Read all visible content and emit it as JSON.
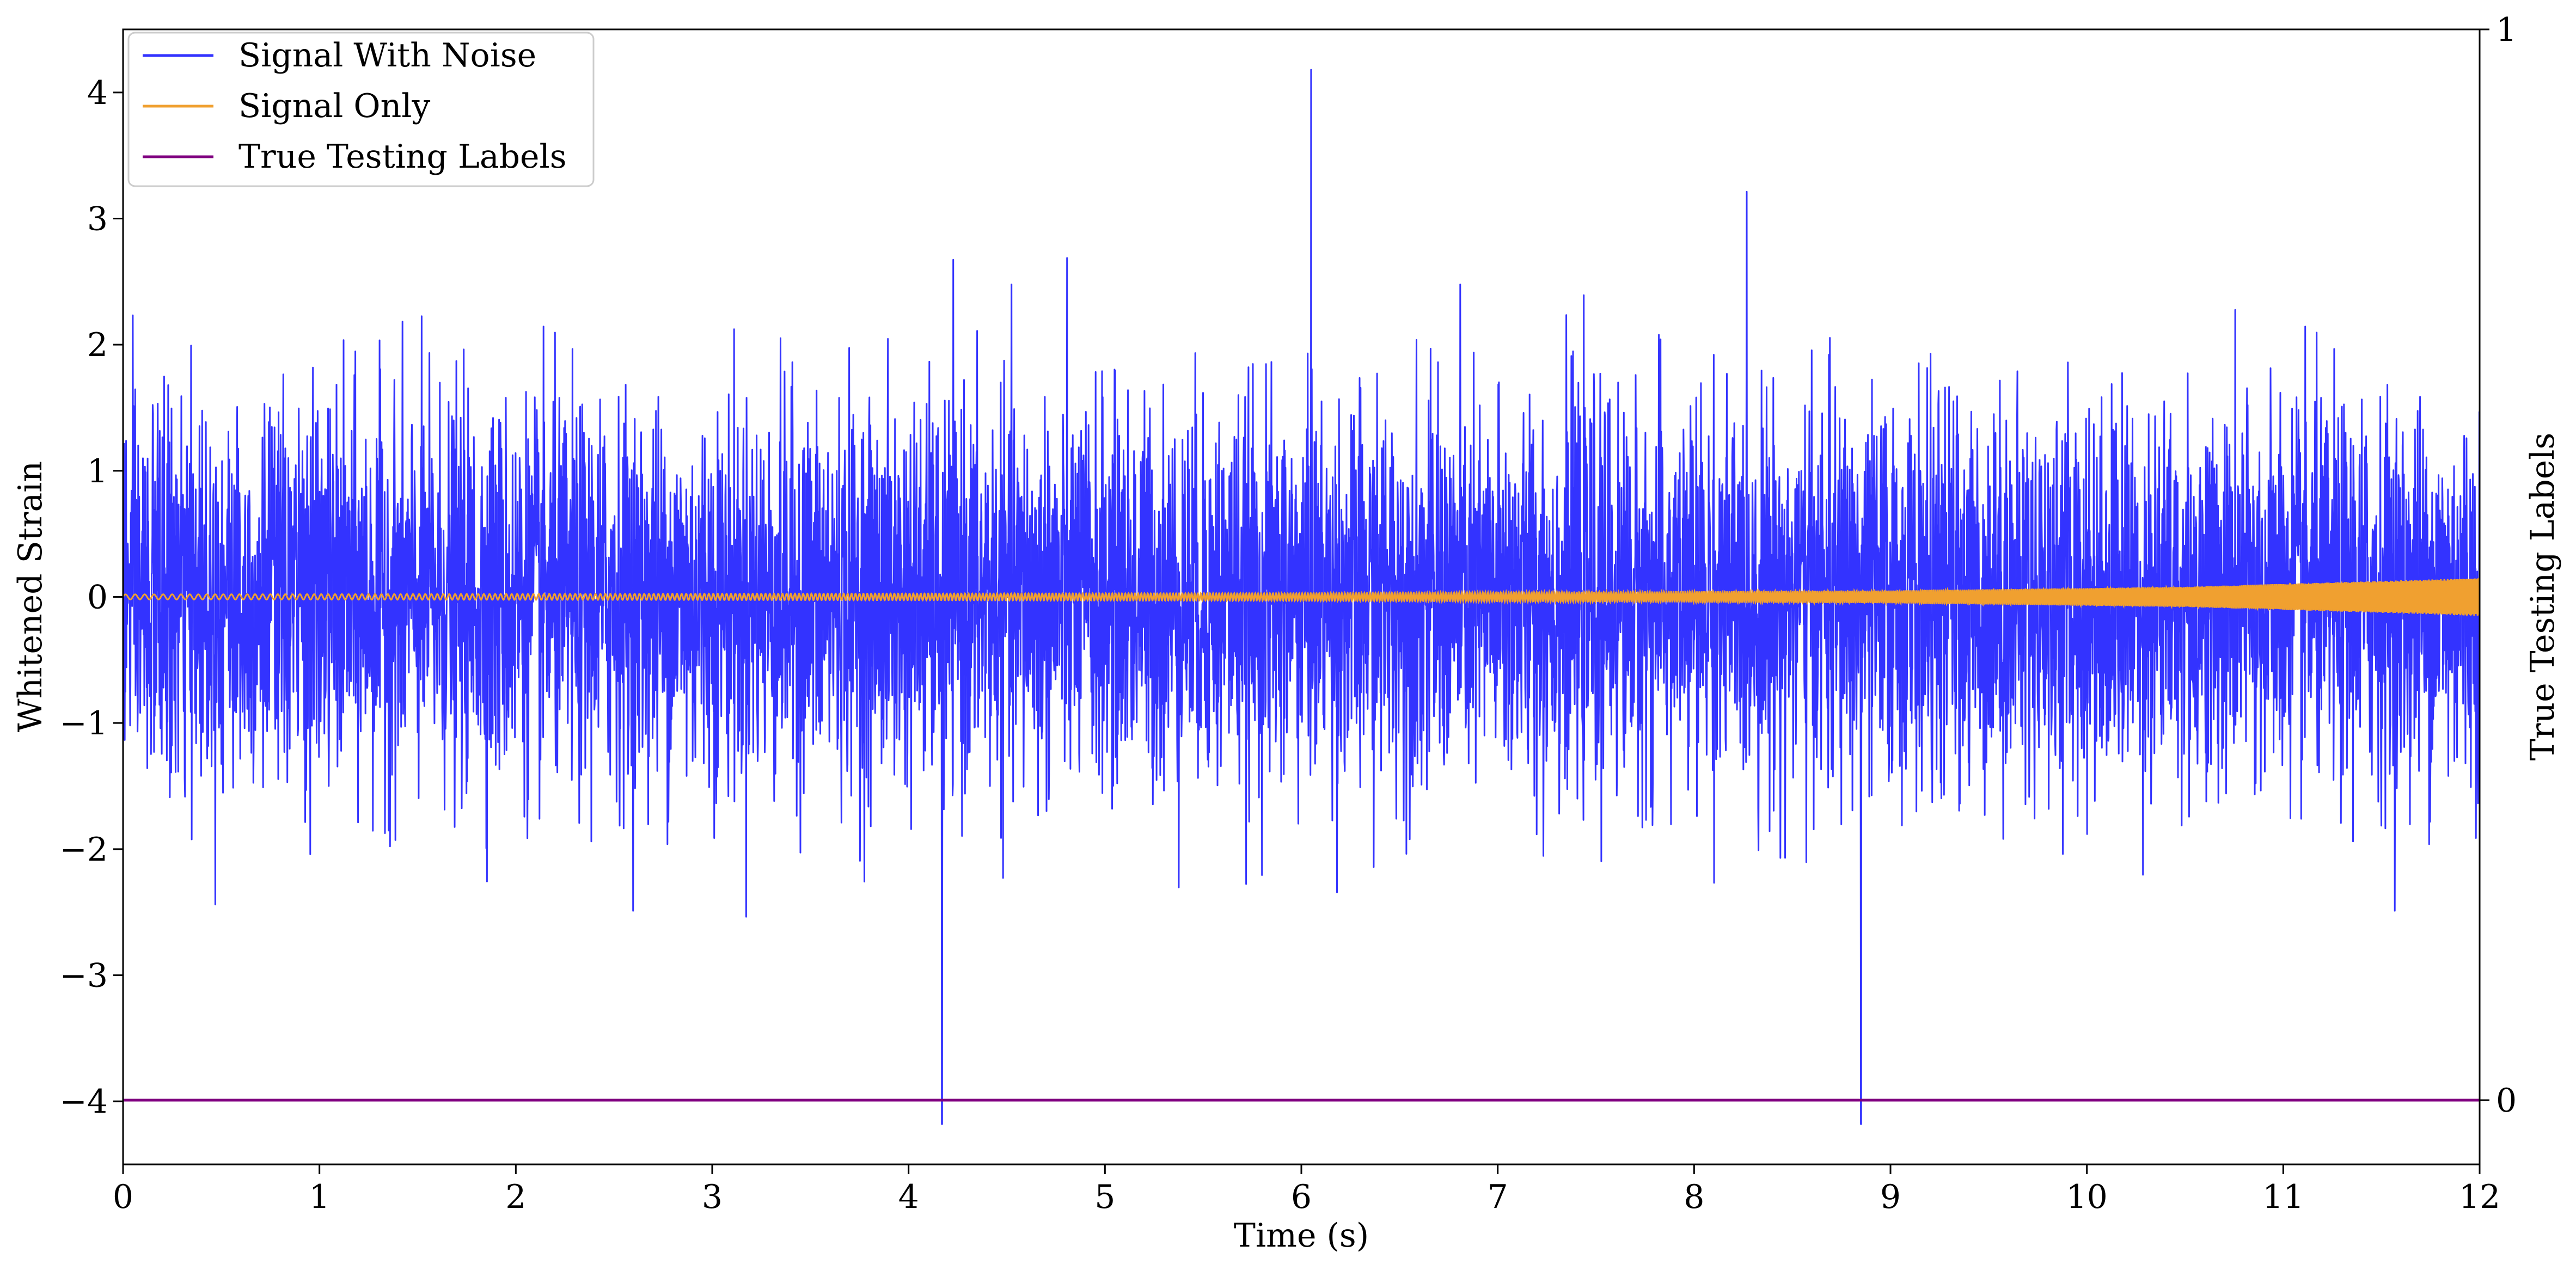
{
  "chart_data": {
    "type": "line",
    "title": "",
    "xlabel": "Time (s)",
    "ylabel": "Whitened Strain",
    "y2label": "True Testing Labels",
    "xlim": [
      0,
      12
    ],
    "ylim": [
      -4.5,
      4.5
    ],
    "y2lim": [
      -0.06,
      1.0
    ],
    "xticks": [
      0,
      1,
      2,
      3,
      4,
      5,
      6,
      7,
      8,
      9,
      10,
      11,
      12
    ],
    "xtick_labels": [
      "0",
      "1",
      "2",
      "3",
      "4",
      "5",
      "6",
      "7",
      "8",
      "9",
      "10",
      "11",
      "12"
    ],
    "yticks": [
      4,
      3,
      2,
      1,
      0,
      -1,
      -2,
      -3,
      -4
    ],
    "ytick_labels": [
      "4",
      "3",
      "2",
      "1",
      "0",
      "−1",
      "−2",
      "−3",
      "−4"
    ],
    "y2ticks": [
      1,
      0
    ],
    "y2tick_labels": [
      "1",
      "0"
    ],
    "grid": false,
    "legend_position": "top-left",
    "series": [
      {
        "name": "Signal With Noise",
        "color": "#3333ff",
        "axis": "left",
        "description_values": {
          "noise_std": 0.75,
          "max_peak": 4.18,
          "max_peak_x": 6.05,
          "min_peak": -4.18,
          "min_peak_x": [
            4.17,
            8.85
          ]
        }
      },
      {
        "name": "Signal Only",
        "color": "#f0a030",
        "axis": "left",
        "envelope": [
          [
            0,
            0.02
          ],
          [
            6,
            0.03
          ],
          [
            9,
            0.05
          ],
          [
            10.5,
            0.08
          ],
          [
            12,
            0.15
          ]
        ]
      },
      {
        "name": "True Testing Labels",
        "color": "#800080",
        "axis": "right",
        "x": [
          0,
          12
        ],
        "y": [
          0,
          0
        ]
      }
    ]
  }
}
